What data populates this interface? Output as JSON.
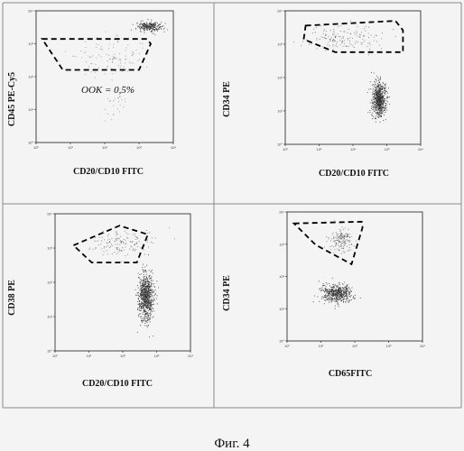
{
  "caption": "Фиг. 4",
  "chart_data": [
    {
      "type": "scatter",
      "xlabel": "CD20/CD10 FITC",
      "ylabel": "CD45 PE-Cy5",
      "xscale": "log",
      "yscale": "log",
      "xlim": [
        1,
        10000
      ],
      "ylim": [
        1,
        10000
      ],
      "xticks": [
        "10⁰",
        "10¹",
        "10²",
        "10³",
        "10⁴"
      ],
      "yticks": [
        "10⁰",
        "10¹",
        "10²",
        "10³",
        "10⁴"
      ],
      "annotation": "OOK = 0,5%",
      "gate": {
        "points": [
          [
            1.5,
            1400
          ],
          [
            1700,
            1400
          ],
          [
            2200,
            1000
          ],
          [
            1000,
            160
          ],
          [
            6,
            160
          ]
        ]
      },
      "populations": [
        {
          "center": [
            2000,
            3300
          ],
          "spread": [
            0.18,
            0.07
          ],
          "count": 260,
          "density": "high"
        },
        {
          "center": [
            150,
            400
          ],
          "spread": [
            0.5,
            0.28
          ],
          "count": 110,
          "density": "low"
        },
        {
          "center": [
            250,
            12
          ],
          "spread": [
            0.2,
            0.25
          ],
          "count": 25,
          "density": "low"
        }
      ]
    },
    {
      "type": "scatter",
      "xlabel": "CD20/CD10 FITC",
      "ylabel": "CD34 PE",
      "xscale": "log",
      "yscale": "log",
      "xlim": [
        1,
        10000
      ],
      "ylim": [
        1,
        10000
      ],
      "xticks": [
        "10⁰",
        "10¹",
        "10²",
        "10³",
        "10⁴"
      ],
      "yticks": [
        "10⁰",
        "10¹",
        "10²",
        "10³",
        "10⁴"
      ],
      "gate": {
        "points": [
          [
            4,
            3600
          ],
          [
            1800,
            5000
          ],
          [
            3000,
            2600
          ],
          [
            3000,
            580
          ],
          [
            30,
            580
          ],
          [
            3.5,
            1400
          ]
        ]
      },
      "populations": [
        {
          "center": [
            600,
            22
          ],
          "spread": [
            0.1,
            0.25
          ],
          "count": 700,
          "density": "high"
        },
        {
          "center": [
            60,
            1500
          ],
          "spread": [
            0.55,
            0.2
          ],
          "count": 150,
          "density": "medium"
        }
      ]
    },
    {
      "type": "scatter",
      "xlabel": "CD20/CD10 FITC",
      "ylabel": "CD38 PE",
      "xscale": "log",
      "yscale": "log",
      "xlim": [
        1,
        10000
      ],
      "ylim": [
        1,
        10000
      ],
      "xticks": [
        "10⁰",
        "10¹",
        "10²",
        "10³",
        "10⁴"
      ],
      "yticks": [
        "10⁰",
        "10¹",
        "10²",
        "10³",
        "10⁴"
      ],
      "gate": {
        "points": [
          [
            3.5,
            1200
          ],
          [
            80,
            4500
          ],
          [
            550,
            2500
          ],
          [
            260,
            380
          ],
          [
            12,
            380
          ]
        ]
      },
      "populations": [
        {
          "center": [
            480,
            40
          ],
          "spread": [
            0.11,
            0.35
          ],
          "count": 800,
          "density": "high"
        },
        {
          "center": [
            90,
            1500
          ],
          "spread": [
            0.45,
            0.2
          ],
          "count": 140,
          "density": "medium"
        }
      ]
    },
    {
      "type": "scatter",
      "xlabel": "CD65FITC",
      "ylabel": "CD34 PE",
      "xscale": "log",
      "yscale": "log",
      "xlim": [
        1,
        10000
      ],
      "ylim": [
        1,
        10000
      ],
      "xticks": [
        "10⁰",
        "10¹",
        "10²",
        "10³",
        "10⁴"
      ],
      "yticks": [
        "10⁰",
        "10¹",
        "10²",
        "10³",
        "10⁴"
      ],
      "gate": {
        "points": [
          [
            1.6,
            4400
          ],
          [
            160,
            5000
          ],
          [
            170,
            3300
          ],
          [
            80,
            240
          ],
          [
            7,
            950
          ]
        ]
      },
      "populations": [
        {
          "center": [
            40,
            1350
          ],
          "spread": [
            0.18,
            0.18
          ],
          "count": 160,
          "density": "medium"
        },
        {
          "center": [
            30,
            30
          ],
          "spread": [
            0.22,
            0.14
          ],
          "count": 520,
          "density": "high"
        }
      ]
    }
  ]
}
